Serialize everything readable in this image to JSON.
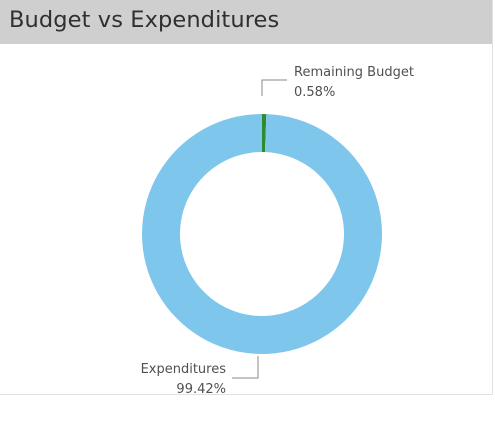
{
  "chart_data": {
    "type": "pie",
    "title": "Budget vs Expenditures",
    "donut": true,
    "slices": [
      {
        "name": "Remaining Budget",
        "value": 0.58,
        "value_label": "0.58%",
        "color": "#2e8b2e"
      },
      {
        "name": "Expenditures",
        "value": 99.42,
        "value_label": "99.42%",
        "color": "#7fc6ec"
      }
    ]
  },
  "colors": {
    "header_bg": "#cfcfcf",
    "title_text": "#303030",
    "label_text": "#505050",
    "leader_line": "#8a8a8a"
  }
}
